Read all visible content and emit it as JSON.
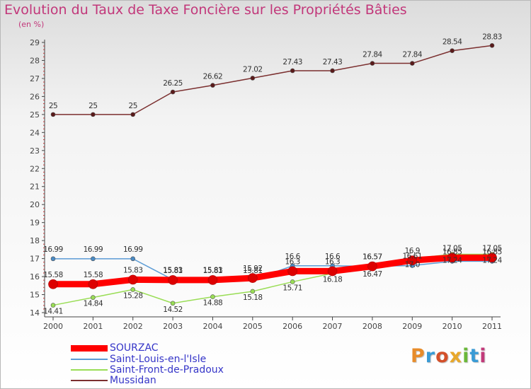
{
  "colors": {
    "title": "#c2377a",
    "legend_text": "#3535c8",
    "axis": "#444444",
    "sourzac": "#ff0000",
    "saint_louis": "#5a9bd5",
    "saint_front": "#99dd55",
    "mussidan": "#7b2f2f"
  },
  "title": "Evolution du Taux de Taxe Foncière sur les Propriétés Bâties",
  "subtitle": "(en %)",
  "logo": "Proxiti",
  "logo_colors": [
    "#e88c2a",
    "#3a9bd5",
    "#d4502a",
    "#e8a82a",
    "#6bb83a",
    "#3a9bd5",
    "#c23a7a"
  ],
  "legend": [
    {
      "label": "SOURZAC",
      "color": "#ff0000",
      "icon": "thick-line-swatch"
    },
    {
      "label": "Saint-Louis-en-l'Isle",
      "color": "#5a9bd5",
      "icon": "line-swatch"
    },
    {
      "label": "Saint-Front-de-Pradoux",
      "color": "#99dd55",
      "icon": "line-swatch"
    },
    {
      "label": "Mussidan",
      "color": "#7b2f2f",
      "icon": "line-swatch"
    }
  ],
  "chart_data": {
    "type": "line",
    "title": "Evolution du Taux de Taxe Foncière sur les Propriétés Bâties",
    "ylabel": "(en %)",
    "xlabel": "",
    "x": [
      "2000",
      "2001",
      "2002",
      "2003",
      "2004",
      "2005",
      "2006",
      "2007",
      "2008",
      "2009",
      "2010",
      "2011"
    ],
    "ylim": [
      14,
      29
    ],
    "yticks": [
      "14",
      "15",
      "16",
      "17",
      "18",
      "19",
      "20",
      "21",
      "22",
      "23",
      "24",
      "25",
      "26",
      "27",
      "28",
      "29"
    ],
    "grid": false,
    "series": [
      {
        "name": "SOURZAC",
        "key": "sourzac",
        "values": [
          15.58,
          15.58,
          15.83,
          15.81,
          15.81,
          15.92,
          16.3,
          16.3,
          16.57,
          16.9,
          17.05,
          17.05
        ],
        "labels": [
          "15.58",
          "15.58",
          "15.83",
          "15.81",
          "15.81",
          "15.92",
          "16.3",
          "16.3",
          "16.57",
          "16.9",
          "17.05",
          "17.05"
        ]
      },
      {
        "name": "Saint-Louis-en-l'Isle",
        "key": "saint_louis",
        "values": [
          16.99,
          16.99,
          16.99,
          15.83,
          15.83,
          15.81,
          16.6,
          16.6,
          16.57,
          16.61,
          16.85,
          16.85
        ],
        "labels": [
          "16.99",
          "16.99",
          "16.99",
          "15.83",
          "15.83",
          "15.81",
          "16.6",
          "16.6",
          "16.57",
          "16.61",
          "16.85",
          "16.85"
        ]
      },
      {
        "name": "Saint-Front-de-Pradoux",
        "key": "saint_front",
        "values": [
          14.41,
          14.84,
          15.28,
          14.52,
          14.88,
          15.18,
          15.71,
          16.18,
          16.47,
          17.0,
          17.24,
          17.24
        ],
        "labels": [
          "14.41",
          "14.84",
          "15.28",
          "14.52",
          "14.88",
          "15.18",
          "15.71",
          "16.18",
          "16.47",
          "17.0",
          "17.24",
          "17.24"
        ]
      },
      {
        "name": "Mussidan",
        "key": "mussidan",
        "values": [
          25,
          25,
          25,
          26.25,
          26.62,
          27.02,
          27.43,
          27.43,
          27.84,
          27.84,
          28.54,
          28.83
        ],
        "labels": [
          "25",
          "25",
          "25",
          "26.25",
          "26.62",
          "27.02",
          "27.43",
          "27.43",
          "27.84",
          "27.84",
          "28.54",
          "28.83"
        ]
      }
    ]
  }
}
